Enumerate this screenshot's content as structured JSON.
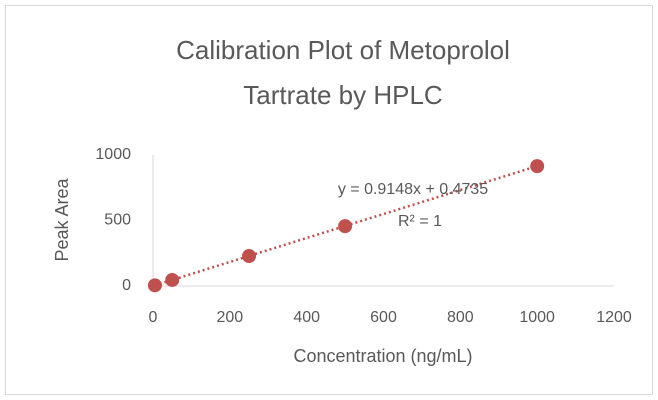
{
  "chart_data": {
    "type": "scatter",
    "title": [
      "Calibration Plot of Metoprolol",
      "Tartrate by HPLC"
    ],
    "x_label": "Concentration (ng/mL)",
    "y_label": "Peak Area",
    "series": [
      {
        "name": "Peak Area",
        "color": "#c0504d",
        "x": [
          5,
          50,
          250,
          500,
          1000
        ],
        "values": [
          5,
          46,
          229,
          457,
          915
        ]
      }
    ],
    "xlim": [
      0,
      1200
    ],
    "xticks": [
      0,
      200,
      400,
      600,
      800,
      1000,
      1200
    ],
    "ylim": [
      0,
      1000
    ],
    "yticks": [
      0,
      500,
      1000
    ],
    "grid": false,
    "trendline": {
      "equation": "y = 0.9148x + 0.4735",
      "r_squared": "R² = 1",
      "slope": 0.9148,
      "intercept": 0.4735
    }
  }
}
